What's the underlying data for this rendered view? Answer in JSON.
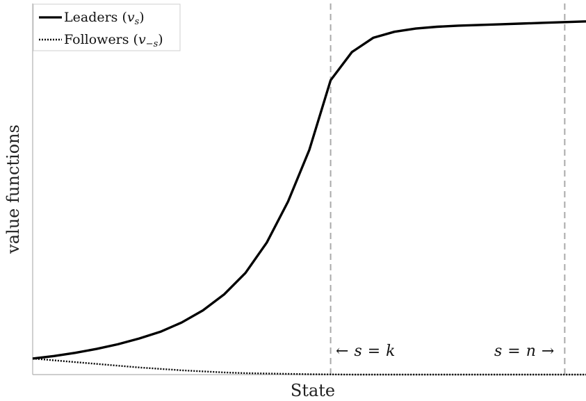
{
  "chart_data": {
    "type": "line",
    "title": "",
    "xlabel": "State",
    "ylabel": "value functions",
    "xlim": [
      0,
      26
    ],
    "ylim": [
      0,
      1.05
    ],
    "grid": false,
    "legend_placement": "top-left",
    "legend": [
      {
        "label_main": "Leaders",
        "label_paren_open": "(",
        "label_math": "v",
        "label_sub": "s",
        "label_paren_close": ")",
        "style": "solid"
      },
      {
        "label_main": "Followers",
        "label_paren_open": "(",
        "label_math": "v",
        "label_sub": "−s",
        "label_paren_close": ")",
        "style": "dotted"
      }
    ],
    "x": [
      0,
      1,
      2,
      3,
      4,
      5,
      6,
      7,
      8,
      9,
      10,
      11,
      12,
      13,
      14,
      15,
      16,
      17,
      18,
      19,
      20,
      21,
      22,
      23,
      24,
      25,
      26
    ],
    "series": [
      {
        "name": "Leaders (v_s)",
        "style": "solid",
        "color": "#000000",
        "values": [
          0.045,
          0.052,
          0.061,
          0.072,
          0.085,
          0.101,
          0.12,
          0.146,
          0.18,
          0.225,
          0.285,
          0.37,
          0.485,
          0.63,
          0.825,
          0.904,
          0.944,
          0.961,
          0.97,
          0.975,
          0.978,
          0.98,
          0.982,
          0.984,
          0.986,
          0.988,
          0.99
        ]
      },
      {
        "name": "Followers (v_−s)",
        "style": "dotted",
        "color": "#000000",
        "values": [
          0.045,
          0.04,
          0.035,
          0.03,
          0.025,
          0.02,
          0.016,
          0.012,
          0.009,
          0.006,
          0.004,
          0.003,
          0.002,
          0.001,
          0.0005,
          0,
          0,
          0,
          0,
          0,
          0,
          0,
          0,
          0,
          0,
          0,
          0
        ]
      }
    ],
    "vlines": [
      {
        "x": 14,
        "style": "dashed",
        "color": "#aaaaaa"
      },
      {
        "x": 25,
        "style": "dashed",
        "color": "#aaaaaa"
      }
    ],
    "annotations": [
      {
        "id": "k",
        "arrow": "←",
        "lhs": "s",
        "eq": "=",
        "rhs": "k"
      },
      {
        "id": "n",
        "arrow": "→",
        "lhs": "s",
        "eq": "=",
        "rhs": "n"
      }
    ]
  }
}
